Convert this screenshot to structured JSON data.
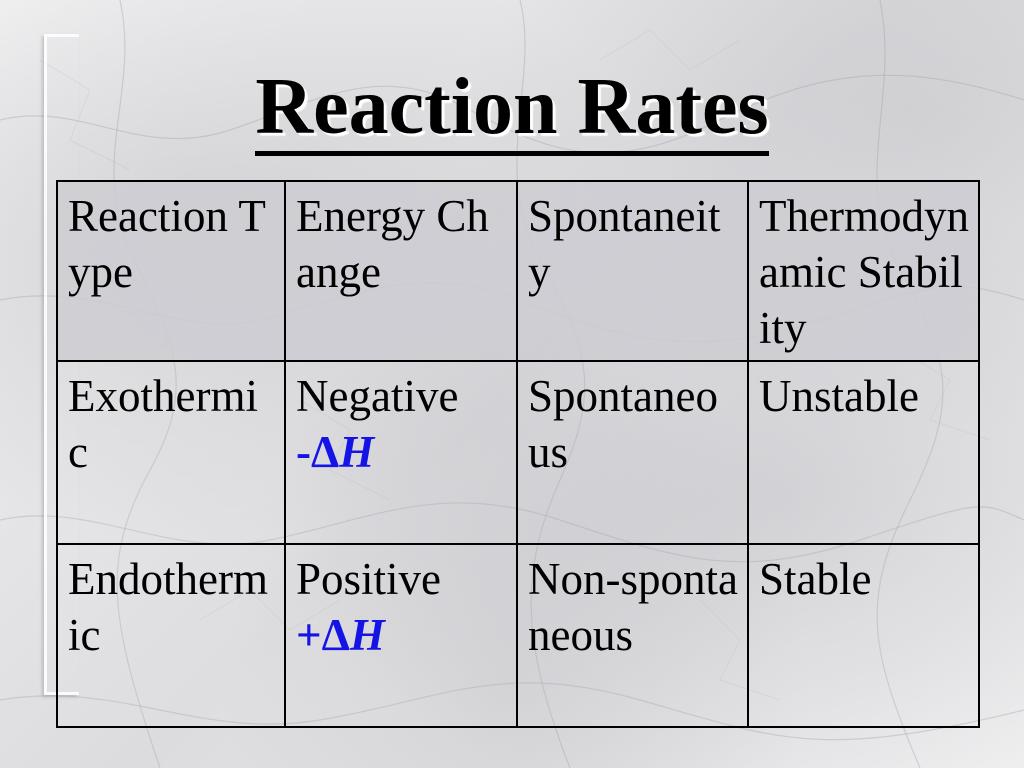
{
  "slide": {
    "title": "Reaction Rates"
  },
  "table": {
    "headers": [
      "Reaction Type",
      "Energy Change",
      "Spontaneity",
      "Thermodynamic Stability"
    ],
    "rows": [
      {
        "reaction_type": "Exothermic",
        "energy_change": "Negative",
        "delta_sign": "-",
        "delta_symbol": "Δ",
        "delta_var": "H",
        "spontaneity": "Spontaneous",
        "stability": "Unstable"
      },
      {
        "reaction_type": "Endothermic",
        "energy_change": "Positive",
        "delta_sign": "+",
        "delta_symbol": "Δ",
        "delta_var": "H",
        "spontaneity": "Non-spontaneous",
        "stability": "Stable"
      }
    ]
  },
  "colors": {
    "delta_text": "#1414e6",
    "header_fill": "#cdcdd2",
    "background": "marble-gray"
  }
}
